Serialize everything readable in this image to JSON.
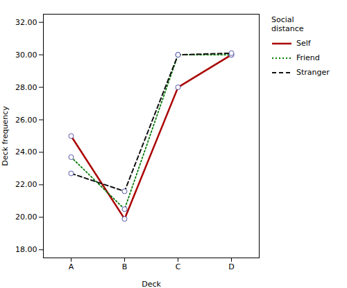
{
  "chart_data": {
    "type": "line",
    "xlabel": "Deck",
    "ylabel": "Deck frequency",
    "categories": [
      "A",
      "B",
      "C",
      "D"
    ],
    "series": [
      {
        "name": "Self",
        "color": "#aa0000",
        "values": [
          25.0,
          19.9,
          28.0,
          30.0
        ],
        "line_style": "solid",
        "marker": "circle"
      },
      {
        "name": "Friend",
        "color": "#007700",
        "values": [
          23.7,
          20.5,
          30.0,
          30.0
        ],
        "line_style": "dotted",
        "marker": "circle"
      },
      {
        "name": "Stranger",
        "color": "#111111",
        "values": [
          22.7,
          21.6,
          30.0,
          30.1
        ],
        "line_style": "dashed",
        "marker": "circle"
      }
    ],
    "ylim": [
      17.5,
      32.5
    ],
    "yticks": [
      {
        "value": 18,
        "label": "18.00"
      },
      {
        "value": 20,
        "label": "20.00"
      },
      {
        "value": 22,
        "label": "22.00"
      },
      {
        "value": 24,
        "label": "24.00"
      },
      {
        "value": 26,
        "label": "26.00"
      },
      {
        "value": 28,
        "label": "28.00"
      },
      {
        "value": 30,
        "label": "30.00"
      },
      {
        "value": 32,
        "label": "32.00"
      }
    ],
    "legend_title": "Social\ndistance",
    "legend": "right",
    "grid": false
  }
}
